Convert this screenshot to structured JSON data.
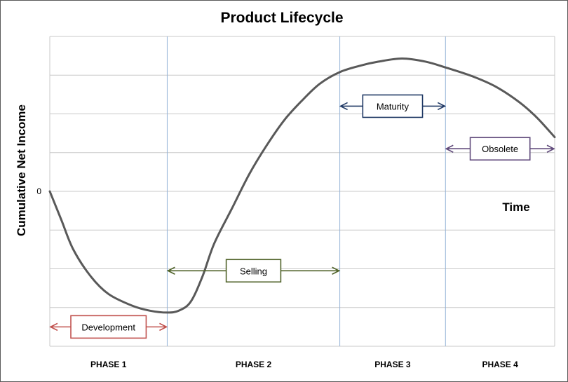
{
  "chart_data": {
    "type": "line",
    "title": "Product Lifecycle",
    "ylabel": "Cumulative Net Income",
    "xlabel": "Time",
    "y_tick_labels": [
      "0"
    ],
    "grid": true,
    "phases": [
      {
        "label": "PHASE 1",
        "start": 0,
        "end": 1
      },
      {
        "label": "PHASE 2",
        "start": 1,
        "end": 2.47
      },
      {
        "label": "PHASE 3",
        "start": 2.47,
        "end": 3.37
      },
      {
        "label": "PHASE 4",
        "start": 3.37,
        "end": 4.3
      }
    ],
    "xlim": [
      0,
      4.3
    ],
    "ylim": [
      -4,
      4
    ],
    "series": [
      {
        "x": [
          0,
          0.1,
          0.2,
          0.35,
          0.5,
          0.7,
          0.85,
          1.0,
          1.1,
          1.2,
          1.3,
          1.4,
          1.55,
          1.7,
          1.85,
          2.0,
          2.15,
          2.3,
          2.47,
          2.65,
          2.8,
          3.0,
          3.2,
          3.37,
          3.6,
          3.8,
          4.0,
          4.15,
          4.3
        ],
        "y": [
          0,
          -0.75,
          -1.5,
          -2.2,
          -2.65,
          -2.95,
          -3.08,
          -3.13,
          -3.08,
          -2.85,
          -2.2,
          -1.35,
          -0.45,
          0.45,
          1.2,
          1.85,
          2.35,
          2.78,
          3.08,
          3.25,
          3.35,
          3.43,
          3.35,
          3.2,
          2.97,
          2.7,
          2.3,
          1.9,
          1.4
        ],
        "color": "#595959"
      }
    ],
    "annotations": [
      {
        "label": "Development",
        "x_start": 0,
        "x_end": 1,
        "y": -3.5,
        "color": "#c0504d"
      },
      {
        "label": "Selling",
        "x_start": 1,
        "x_end": 2.47,
        "y": -2.05,
        "color": "#4f6228"
      },
      {
        "label": "Maturity",
        "x_start": 2.47,
        "x_end": 3.37,
        "y": 2.2,
        "color": "#1f3864"
      },
      {
        "label": "Obsolete",
        "x_start": 3.37,
        "x_end": 4.3,
        "y": 1.1,
        "color": "#604a7b"
      }
    ],
    "colors": {
      "grid": "#c8c8c8",
      "phase_line": "#95b3d7",
      "curve": "#595959"
    }
  }
}
